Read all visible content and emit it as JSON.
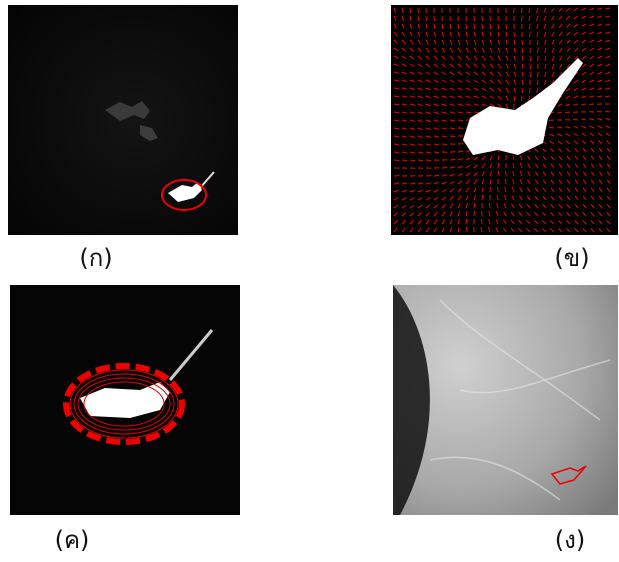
{
  "panels": [
    {
      "caption": "(ก)"
    },
    {
      "caption": "(ข)"
    },
    {
      "caption": "(ค)"
    },
    {
      "caption": "(ง)"
    }
  ]
}
